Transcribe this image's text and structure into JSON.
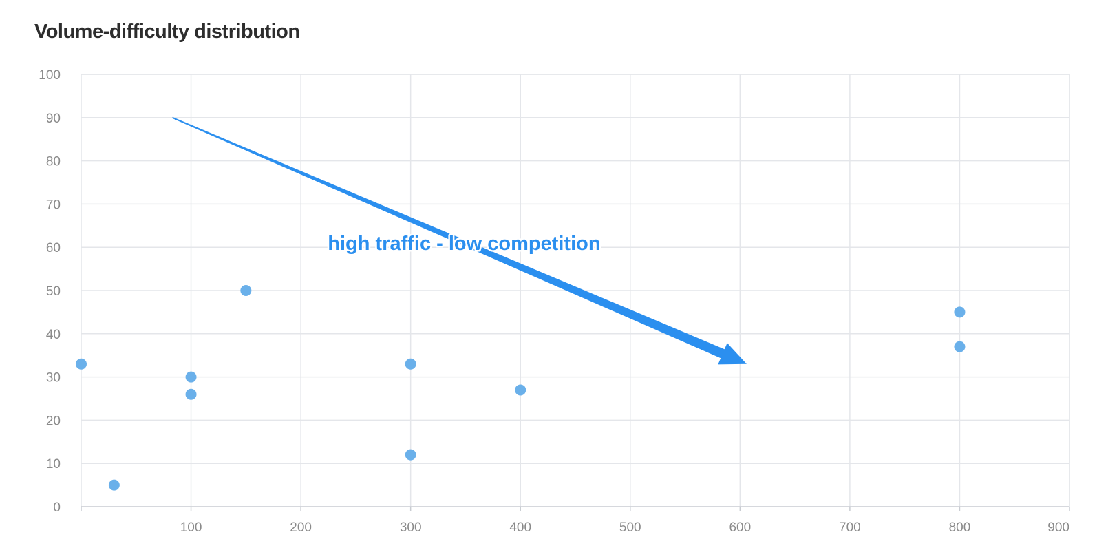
{
  "chart_data": {
    "type": "scatter",
    "title": "Volume-difficulty distribution",
    "xlabel": "",
    "ylabel": "",
    "xlim": [
      0,
      900
    ],
    "ylim": [
      0,
      100
    ],
    "x_ticks": [
      100,
      200,
      300,
      400,
      500,
      600,
      700,
      800,
      900
    ],
    "y_ticks": [
      0,
      10,
      20,
      30,
      40,
      50,
      60,
      70,
      80,
      90,
      100
    ],
    "grid": true,
    "point_color": "#6ab0ea",
    "series": [
      {
        "points": [
          {
            "x": 0,
            "y": 33
          },
          {
            "x": 30,
            "y": 5
          },
          {
            "x": 100,
            "y": 30
          },
          {
            "x": 100,
            "y": 26
          },
          {
            "x": 150,
            "y": 50
          },
          {
            "x": 300,
            "y": 33
          },
          {
            "x": 300,
            "y": 12
          },
          {
            "x": 400,
            "y": 27
          },
          {
            "x": 800,
            "y": 45
          },
          {
            "x": 800,
            "y": 37
          }
        ]
      }
    ],
    "annotation": {
      "text": "high traffic - low competition",
      "color": "#2b8fef",
      "arrow": {
        "from": {
          "x": 83,
          "y": 90
        },
        "to": {
          "x": 606,
          "y": 33
        }
      },
      "text_anchor": {
        "x": 355,
        "y": 61
      }
    }
  }
}
